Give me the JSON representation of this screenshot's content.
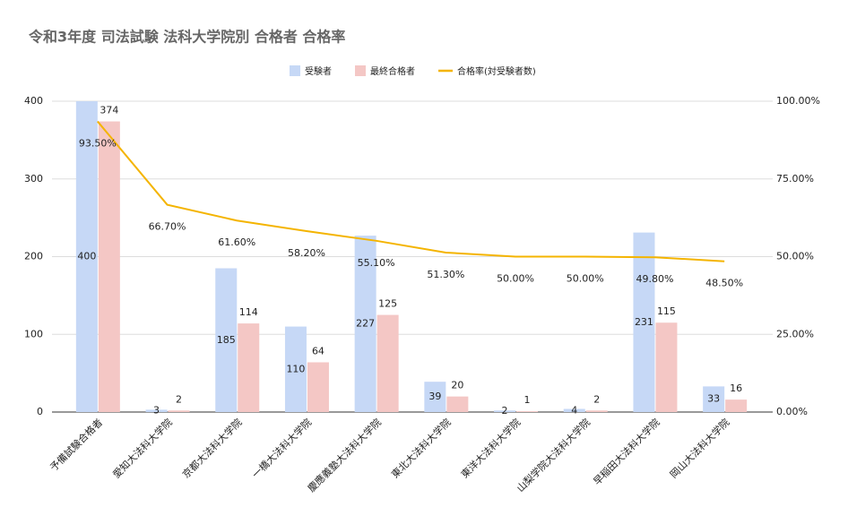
{
  "chart_data": {
    "type": "bar",
    "title": "令和3年度 司法試験 法科大学院別 合格者 合格率",
    "categories": [
      "予備試験合格者",
      "愛知大法科大学院",
      "京都大法科大学院",
      "一橋大法科大学院",
      "慶應義塾大法科大学院",
      "東北大法科大学院",
      "東洋大法科大学院",
      "山梨学院大法科大学院",
      "早稲田大法科大学院",
      "岡山大法科大学院"
    ],
    "series": [
      {
        "name": "受験者",
        "color": "#c6d8f6",
        "values": [
          400,
          3,
          185,
          110,
          227,
          39,
          2,
          4,
          231,
          33
        ]
      },
      {
        "name": "最終合格者",
        "color": "#f4c7c5",
        "values": [
          374,
          2,
          114,
          64,
          125,
          20,
          1,
          2,
          115,
          16
        ]
      },
      {
        "name": "合格率(対受験者数)",
        "color": "#f4b400",
        "type": "line",
        "axis": "y2",
        "values": [
          93.5,
          66.7,
          61.6,
          58.2,
          55.1,
          51.3,
          50,
          50,
          49.8,
          48.5
        ],
        "value_labels": [
          "93.50%",
          "66.70%",
          "61.60%",
          "58.20%",
          "55.10%",
          "51.30%",
          "50.00%",
          "50.00%",
          "49.80%",
          "48.50%"
        ]
      }
    ],
    "ylim": [
      0,
      400
    ],
    "yticks": [
      0,
      100,
      200,
      300,
      400
    ],
    "y2lim": [
      0,
      100
    ],
    "y2ticks": [
      {
        "value": 0,
        "label": "0.00%"
      },
      {
        "value": 25,
        "label": "25.00%"
      },
      {
        "value": 50,
        "label": "50.00%"
      },
      {
        "value": 75,
        "label": "75.00%"
      },
      {
        "value": 100,
        "label": "100.00%"
      }
    ],
    "grid": true
  }
}
